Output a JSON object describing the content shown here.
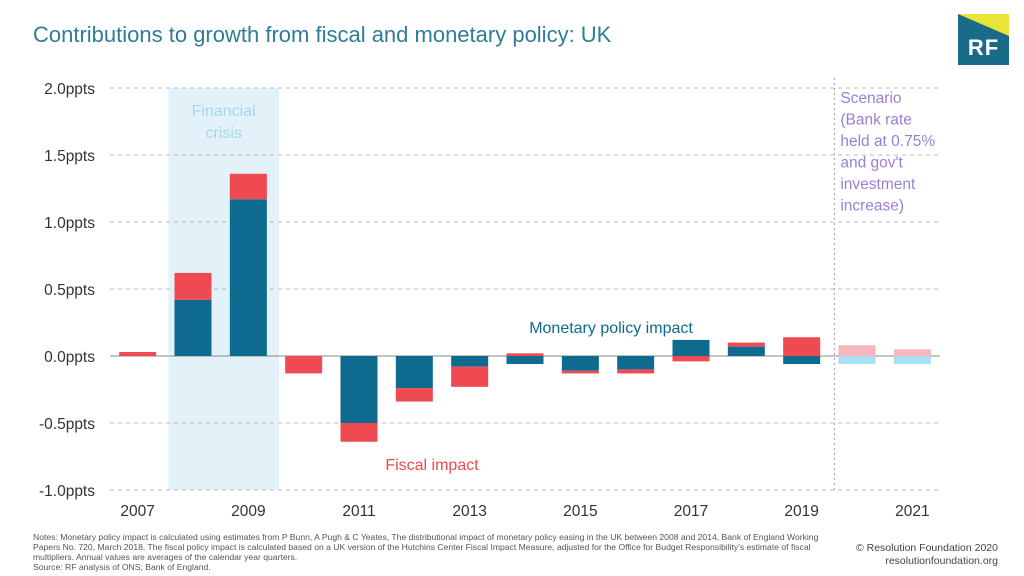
{
  "title": "Contributions to growth from fiscal and monetary policy: UK",
  "logo": "RF",
  "notes": "Notes: Monetary policy impact is calculated using estimates from P Bunn, A Pugh & C Yeates, The distributional impact of monetary policy easing in the UK between 2008 and 2014, Bank of England Working Papers No. 720, March 2018. The fiscal policy impact is calculated based on a UK version of the Hutchins Center Fiscal Impact Measure, adjusted for the Office for Budget Responsibility's estimate of fiscal multipliers. Annual values are averages of the calendar year quarters.",
  "source": "Source: RF analysis of ONS; Bank of England.",
  "credit": [
    "© Resolution Foundation 2020",
    "resolutionfoundation.org"
  ],
  "colors": {
    "monetary": "#0e6a8f",
    "fiscal": "#ef4951",
    "monetary_scenario": "#a9dff3",
    "fiscal_scenario": "#f5b6bd",
    "shade": "#e3f2f9",
    "shade_text": "#a6d6ea",
    "scenario_text": "#9b7fd4",
    "axis_text": "#333333",
    "grid": "#bbbbbb"
  },
  "chart_data": {
    "type": "bar",
    "stacked": true,
    "categories": [
      "2007",
      "2008",
      "2009",
      "2010",
      "2011",
      "2012",
      "2013",
      "2014",
      "2015",
      "2016",
      "2017",
      "2018",
      "2019",
      "2020",
      "2021"
    ],
    "x_tick_labels": [
      "2007",
      "",
      "2009",
      "",
      "2011",
      "",
      "2013",
      "",
      "2015",
      "",
      "2017",
      "",
      "2019",
      "",
      "2021"
    ],
    "series": [
      {
        "name": "Monetary policy impact",
        "values": [
          0.0,
          0.42,
          1.17,
          0.0,
          -0.5,
          -0.24,
          -0.08,
          -0.06,
          -0.11,
          -0.1,
          0.12,
          0.07,
          -0.06,
          -0.06,
          -0.06
        ]
      },
      {
        "name": "Fiscal impact",
        "values": [
          0.03,
          0.2,
          0.19,
          -0.13,
          -0.14,
          -0.1,
          -0.15,
          0.02,
          -0.02,
          -0.03,
          -0.04,
          0.03,
          0.14,
          0.08,
          0.05
        ]
      }
    ],
    "scenario_categories": [
      "2020",
      "2021"
    ],
    "ylim": [
      -1.0,
      2.0
    ],
    "y_ticks": [
      2.0,
      1.5,
      1.0,
      0.5,
      0.0,
      -0.5,
      -1.0
    ],
    "y_tick_labels": [
      "2.0ppts",
      "1.5ppts",
      "1.0ppts",
      "0.5ppts",
      "0.0ppts",
      "-0.5ppts",
      "-1.0ppts"
    ],
    "grid": true,
    "shaded_period": {
      "label": [
        "Financial",
        "crisis"
      ],
      "from": "2008",
      "to": "2009"
    },
    "scenario": {
      "label": [
        "Scenario",
        "(Bank rate",
        "held at 0.75%",
        "and gov't",
        "investment",
        "increase)"
      ],
      "from": "2020"
    },
    "annotations": {
      "monetary": "Monetary policy impact",
      "fiscal": "Fiscal impact"
    }
  }
}
